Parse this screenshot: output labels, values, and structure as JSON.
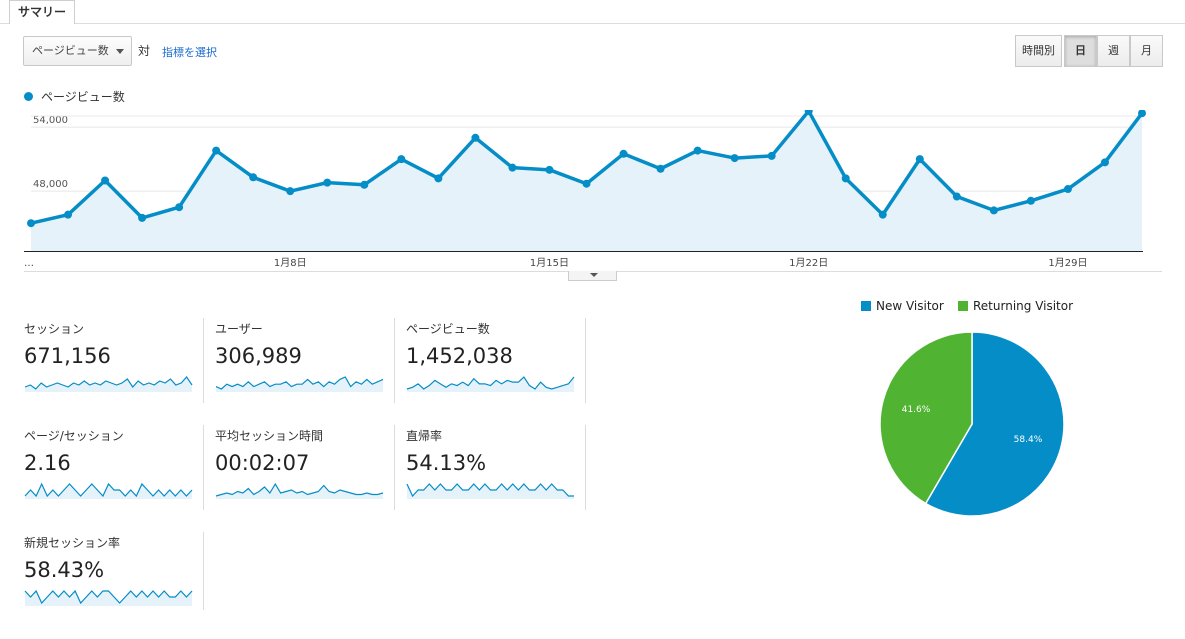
{
  "tab": {
    "label": "サマリー"
  },
  "controls": {
    "metric_select": "ページビュー数",
    "vs_label": "対",
    "select_metric_link": "指標を選択",
    "granularity": [
      "時間別",
      "日",
      "週",
      "月"
    ],
    "active_granularity": "日"
  },
  "colors": {
    "primary": "#058dc7",
    "secondary": "#50b432",
    "area_fill": "#e6f2f9"
  },
  "chart_data": [
    {
      "type": "line",
      "series": [
        {
          "name": "ページビュー数",
          "values": [
            45000,
            45800,
            49000,
            45500,
            46500,
            51800,
            49300,
            48000,
            48800,
            48600,
            51000,
            49200,
            53000,
            50200,
            50000,
            48700,
            51500,
            50100,
            51800,
            51100,
            51300,
            55500,
            49200,
            45800,
            51000,
            47500,
            46200,
            47100,
            48200,
            50700,
            55300
          ]
        }
      ],
      "x_tick_labels": [
        "…",
        "1月8日",
        "1月15日",
        "1月22日",
        "1月29日"
      ],
      "y_tick_labels": [
        "54,000",
        "48,000"
      ],
      "ylim": [
        42400,
        55600
      ],
      "grid": true
    },
    {
      "type": "pie",
      "slices": [
        {
          "label": "New Visitor",
          "value": 58.4,
          "display": "58.4%",
          "color": "#058dc7"
        },
        {
          "label": "Returning Visitor",
          "value": 41.6,
          "display": "41.6%",
          "color": "#50b432"
        }
      ],
      "legend": "top"
    }
  ],
  "metrics": [
    {
      "label": "セッション",
      "value": "671,156",
      "spark": [
        4,
        5,
        3,
        6,
        4,
        5,
        6,
        5,
        4,
        6,
        5,
        7,
        5,
        6,
        5,
        7,
        6,
        5,
        6,
        8,
        4,
        7,
        5,
        6,
        5,
        7,
        6,
        8,
        5,
        6,
        9,
        5
      ]
    },
    {
      "label": "ユーザー",
      "value": "306,989",
      "spark": [
        5,
        4,
        6,
        5,
        6,
        5,
        7,
        5,
        6,
        7,
        5,
        6,
        6,
        7,
        5,
        6,
        6,
        8,
        6,
        7,
        5,
        7,
        6,
        8,
        9,
        5,
        7,
        6,
        8,
        6,
        7,
        8
      ]
    },
    {
      "label": "ページビュー数",
      "value": "1,452,038",
      "spark": [
        3,
        4,
        6,
        3,
        5,
        8,
        6,
        4,
        6,
        5,
        7,
        5,
        9,
        6,
        6,
        5,
        8,
        6,
        8,
        7,
        7,
        10,
        5,
        3,
        7,
        4,
        3,
        4,
        5,
        6,
        10
      ]
    },
    {
      "label": "ページ/セッション",
      "value": "2.16",
      "spark": [
        6,
        7,
        6,
        8,
        6,
        7,
        6,
        7,
        8,
        7,
        6,
        7,
        8,
        7,
        6,
        8,
        7,
        7,
        6,
        7,
        6,
        8,
        7,
        6,
        7,
        6,
        7,
        6,
        7,
        6,
        7
      ]
    },
    {
      "label": "平均セッション時間",
      "value": "00:02:07",
      "spark": [
        4,
        5,
        6,
        5,
        7,
        6,
        9,
        5,
        7,
        10,
        6,
        12,
        6,
        7,
        8,
        6,
        7,
        5,
        6,
        7,
        11,
        7,
        6,
        8,
        7,
        6,
        5,
        5,
        6,
        5,
        5,
        6
      ]
    },
    {
      "label": "直帰率",
      "value": "54.13%",
      "spark": [
        8,
        6,
        7,
        7,
        8,
        7,
        8,
        7,
        7,
        8,
        7,
        7,
        8,
        7,
        8,
        7,
        7,
        8,
        7,
        8,
        7,
        8,
        7,
        7,
        8,
        7,
        8,
        7,
        7,
        6,
        6
      ]
    },
    {
      "label": "新規セッション率",
      "value": "58.43%",
      "spark": [
        8,
        7,
        8,
        6,
        7,
        8,
        7,
        8,
        7,
        8,
        6,
        7,
        8,
        7,
        8,
        8,
        7,
        6,
        7,
        8,
        7,
        8,
        7,
        8,
        7,
        8,
        7,
        7,
        8,
        7,
        8
      ]
    }
  ]
}
